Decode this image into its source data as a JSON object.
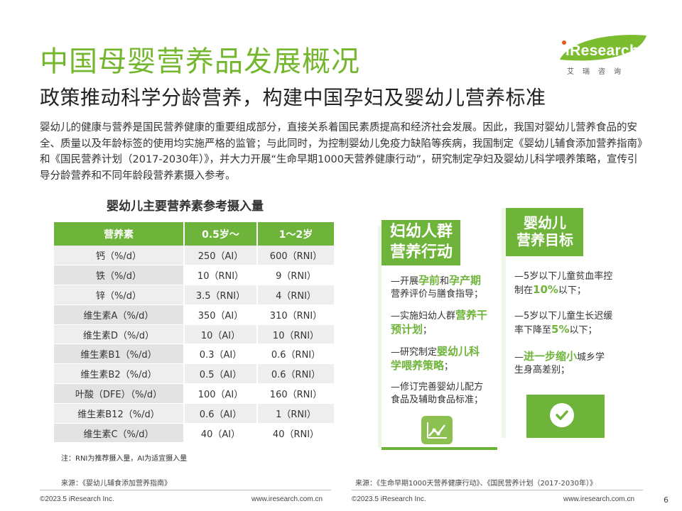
{
  "header": {
    "title": "中国母婴营养品发展概况",
    "subtitle": "政策推动科学分龄营养，构建中国孕妇及婴幼儿营养标准"
  },
  "logo": {
    "word": "iResearch",
    "cn": "艾瑞咨询"
  },
  "intro": "婴幼儿的健康与营养是国民营养健康的重要组成部分，直接关系着国民素质提高和经济社会发展。因此，我国对婴幼儿营养食品的安全、质量以及年龄标签的使用均实施严格的监管；与此同时，为控制婴幼儿免疫力缺陷等疾病，我国制定《婴幼儿辅食添加营养指南》和《国民营养计划（2017-2030年）》，并大力开展“生命早期1000天营养健康行动”，研究制定孕妇及婴幼儿科学喂养策略，宣传引导分龄营养和不同年龄段营养素摄入参考。",
  "table": {
    "title": "婴幼儿主要营养素参考摄入量",
    "headers": [
      "营养素",
      "0.5岁～",
      "1～2岁"
    ],
    "rows": [
      [
        "钙（%/d）",
        "250（AI）",
        "600（RNI）"
      ],
      [
        "铁（%/d）",
        "10（RNI）",
        "9（RNI）"
      ],
      [
        "锌（%/d）",
        "3.5（RNI）",
        "4（RNI）"
      ],
      [
        "维生素A（%/d）",
        "350（AI）",
        "310（RNI）"
      ],
      [
        "维生素D（%/d）",
        "10（AI）",
        "10（RNI）"
      ],
      [
        "维生素B1（%/d）",
        "0.3（AI）",
        "0.6（RNI）"
      ],
      [
        "维生素B2（%/d）",
        "0.5（AI）",
        "0.6（RNI）"
      ],
      [
        "叶酸（DFE）（%/d）",
        "100（AI）",
        "160（RNI）"
      ],
      [
        "维生素B12（%/d）",
        "0.6（AI）",
        "1（RNI）"
      ],
      [
        "维生素C（%/d）",
        "40（AI）",
        "40（RNI）"
      ]
    ],
    "note": "注：RNI为推荐摄入量，AI为适宜摄入量"
  },
  "card_action": {
    "title_line1": "妇幼人群",
    "title_line2": "营养行动",
    "items": [
      {
        "pre": "—开展",
        "hl1": "孕前",
        "mid": "和",
        "hl2": "孕产期",
        "post": "营养评价与膳食指导；"
      },
      {
        "pre": "—实施妇幼人群",
        "hl1": "营养干预计划",
        "post": "；"
      },
      {
        "pre": "—研究制定",
        "hl1": "婴幼儿科学喂养策略",
        "post": "；"
      },
      {
        "pre": "—修订完善婴幼儿配方食品及辅助食品标准；"
      }
    ],
    "icon": "line-chart-icon"
  },
  "card_goal": {
    "title_line1": "婴幼儿",
    "title_line2": "营养目标",
    "items": [
      {
        "pre": "—5岁以下儿童贫血率控制在",
        "hl": "10%",
        "post": "以下；"
      },
      {
        "pre": "—5岁以下儿童生长迟缓率下降至",
        "hl": "5%",
        "post": "以下；"
      },
      {
        "pre": "—",
        "hl": "进一步缩小",
        "post": "城乡学生身高差别；"
      }
    ],
    "icon": "check-circle-icon"
  },
  "sources": {
    "left": "来源：《婴幼儿辅食添加营养指南》",
    "right": "来源：《生命早期1000天营养健康行动》、《国民营养计划（2017-2030年）》"
  },
  "footer": {
    "copyright_left": "©2023.5 iResearch Inc.",
    "url_left": "www.iresearch.com.cn",
    "copyright_right": "©2023.5 iResearch Inc.",
    "url_right": "www.iresearch.com.cn",
    "page": "6"
  },
  "colors": {
    "accent": "#6fb43a",
    "title_green": "#74b72f",
    "light_green_bg": "#eef6e6"
  }
}
